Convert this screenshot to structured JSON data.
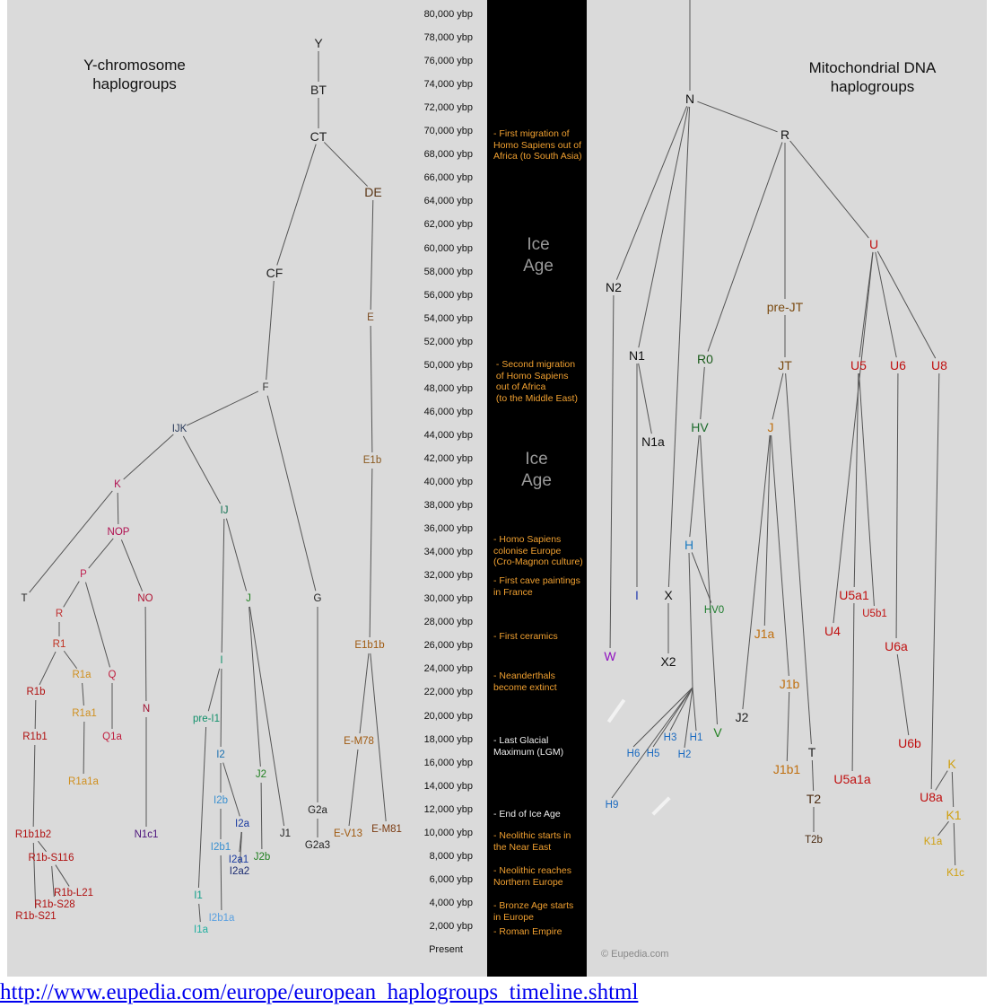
{
  "y_title": "Y-chromosome\nhaplogroups",
  "mt_title": "Mitochondrial DNA\nhaplogroups",
  "ticks": [
    "80,000 ybp",
    "78,000 ybp",
    "76,000 ybp",
    "74,000 ybp",
    "72,000 ybp",
    "70,000 ybp",
    "68,000 ybp",
    "66,000 ybp",
    "64,000 ybp",
    "62,000 ybp",
    "60,000 ybp",
    "58,000 ybp",
    "56,000 ybp",
    "54,000 ybp",
    "52,000 ybp",
    "50,000 ybp",
    "48,000 ybp",
    "46,000 ybp",
    "44,000 ybp",
    "42,000 ybp",
    "40,000 ybp",
    "38,000 ybp",
    "36,000 ybp",
    "34,000 ybp",
    "32,000 ybp",
    "30,000 ybp",
    "28,000 ybp",
    "26,000 ybp",
    "24,000 ybp",
    "22,000 ybp",
    "20,000 ybp",
    "18,000 ybp",
    "16,000 ybp",
    "14,000 ybp",
    "12,000 ybp",
    "10,000 ybp",
    "8,000 ybp",
    "6,000 ybp",
    "4,000 ybp",
    "2,000 ybp",
    "Present"
  ],
  "ice_age": "Ice\nAge",
  "events": [
    {
      "text": "- First migration of\nHomo Sapiens out of\nAfrica (to South Asia)",
      "color": "orange"
    },
    {
      "text": " - Second migration\n of Homo Sapiens\n out of Africa\n (to the Middle East)",
      "color": "orange"
    },
    {
      "text": "- Homo Sapiens\ncolonise Europe\n(Cro-Magnon culture)",
      "color": "orange"
    },
    {
      "text": "- First cave paintings\nin France",
      "color": "orange"
    },
    {
      "text": "- First ceramics",
      "color": "orange"
    },
    {
      "text": "- Neanderthals\nbecome extinct",
      "color": "orange"
    },
    {
      "text": "- Last Glacial\nMaximum (LGM)",
      "color": "white"
    },
    {
      "text": "- End of Ice Age",
      "color": "white"
    },
    {
      "text": "- Neolithic starts in\nthe Near East",
      "color": "orange"
    },
    {
      "text": "- Neolithic reaches\nNorthern Europe",
      "color": "orange"
    },
    {
      "text": "- Bronze Age starts\nin Europe",
      "color": "orange"
    },
    {
      "text": "- Roman Empire",
      "color": "orange"
    }
  ],
  "y_nodes": [
    {
      "id": "Y",
      "label": "Y",
      "color": "#222",
      "big": true
    },
    {
      "id": "BT",
      "label": "BT",
      "color": "#222",
      "big": true
    },
    {
      "id": "CT",
      "label": "CT",
      "color": "#222",
      "big": true
    },
    {
      "id": "DE",
      "label": "DE",
      "color": "#5a3515",
      "big": true
    },
    {
      "id": "CF",
      "label": "CF",
      "color": "#222",
      "big": true
    },
    {
      "id": "E",
      "label": "E",
      "color": "#7a4a20"
    },
    {
      "id": "F",
      "label": "F",
      "color": "#333"
    },
    {
      "id": "IJK",
      "label": "IJK",
      "color": "#2a3a5a"
    },
    {
      "id": "E1b",
      "label": "E1b",
      "color": "#8a5a20"
    },
    {
      "id": "K",
      "label": "K",
      "color": "#b01050"
    },
    {
      "id": "IJ",
      "label": "IJ",
      "color": "#107050"
    },
    {
      "id": "NOP",
      "label": "NOP",
      "color": "#b01050"
    },
    {
      "id": "P",
      "label": "P",
      "color": "#c02050"
    },
    {
      "id": "T",
      "label": "T",
      "color": "#222"
    },
    {
      "id": "NO",
      "label": "NO",
      "color": "#b01030"
    },
    {
      "id": "G",
      "label": "G",
      "color": "#222"
    },
    {
      "id": "J",
      "label": "J",
      "color": "#208020"
    },
    {
      "id": "R",
      "label": "R",
      "color": "#c03030"
    },
    {
      "id": "R1",
      "label": "R1",
      "color": "#c03020"
    },
    {
      "id": "E1b1b",
      "label": "E1b1b",
      "color": "#a05a10"
    },
    {
      "id": "I",
      "label": "I",
      "color": "#10906a"
    },
    {
      "id": "R1a",
      "label": "R1a",
      "color": "#d09020"
    },
    {
      "id": "Q",
      "label": "Q",
      "color": "#c02040"
    },
    {
      "id": "R1b",
      "label": "R1b",
      "color": "#b01010"
    },
    {
      "id": "R1a1",
      "label": "R1a1",
      "color": "#d09020"
    },
    {
      "id": "N",
      "label": "N",
      "color": "#a01030"
    },
    {
      "id": "pre-I1",
      "label": "pre-I1",
      "color": "#10906a"
    },
    {
      "id": "R1b1",
      "label": "R1b1",
      "color": "#b01010"
    },
    {
      "id": "Q1a",
      "label": "Q1a",
      "color": "#c02040"
    },
    {
      "id": "E-M78",
      "label": "E-M78",
      "color": "#a05a10"
    },
    {
      "id": "I2",
      "label": "I2",
      "color": "#1a70b0"
    },
    {
      "id": "J2",
      "label": "J2",
      "color": "#208020"
    },
    {
      "id": "R1a1a",
      "label": "R1a1a",
      "color": "#d09020"
    },
    {
      "id": "I2b",
      "label": "I2b",
      "color": "#3a90d0"
    },
    {
      "id": "G2a",
      "label": "G2a",
      "color": "#222"
    },
    {
      "id": "I2a",
      "label": "I2a",
      "color": "#1a3aa0"
    },
    {
      "id": "R1b1b2",
      "label": "R1b1b2",
      "color": "#b01010"
    },
    {
      "id": "N1c1",
      "label": "N1c1",
      "color": "#4a107a"
    },
    {
      "id": "E-V13",
      "label": "E-V13",
      "color": "#a05a10"
    },
    {
      "id": "E-M81",
      "label": "E-M81",
      "color": "#7a3a10"
    },
    {
      "id": "J1",
      "label": "J1",
      "color": "#222"
    },
    {
      "id": "G2a3",
      "label": "G2a3",
      "color": "#222"
    },
    {
      "id": "I2b1",
      "label": "I2b1",
      "color": "#3a90d0"
    },
    {
      "id": "I2a1",
      "label": "I2a1",
      "color": "#1a3aa0"
    },
    {
      "id": "J2b",
      "label": "J2b",
      "color": "#208020"
    },
    {
      "id": "I2a2",
      "label": "I2a2",
      "color": "#1a2a70"
    },
    {
      "id": "R1b-S116",
      "label": "R1b-S116",
      "color": "#b01010"
    },
    {
      "id": "I1",
      "label": "I1",
      "color": "#10a08a"
    },
    {
      "id": "R1b-L21",
      "label": "R1b-L21",
      "color": "#b01010"
    },
    {
      "id": "R1b-S28",
      "label": "R1b-S28",
      "color": "#b01010"
    },
    {
      "id": "I2b1a",
      "label": "I2b1a",
      "color": "#5aa0e0"
    },
    {
      "id": "R1b-S21",
      "label": "R1b-S21",
      "color": "#b01010"
    },
    {
      "id": "I1a",
      "label": "I1a",
      "color": "#20b0a0"
    }
  ],
  "mt_nodes": [
    {
      "id": "N",
      "label": "N",
      "color": "#111",
      "big": true
    },
    {
      "id": "R",
      "label": "R",
      "color": "#111",
      "big": true
    },
    {
      "id": "U",
      "label": "U",
      "color": "#c01010",
      "big": true
    },
    {
      "id": "N2",
      "label": "N2",
      "color": "#111",
      "big": true
    },
    {
      "id": "pre-JT",
      "label": "pre-JT",
      "color": "#7a4a10",
      "big": true
    },
    {
      "id": "N1",
      "label": "N1",
      "color": "#111",
      "big": true
    },
    {
      "id": "R0",
      "label": "R0",
      "color": "#1a5a1a",
      "big": true
    },
    {
      "id": "JT",
      "label": "JT",
      "color": "#7a4a10",
      "big": true
    },
    {
      "id": "U5",
      "label": "U5",
      "color": "#c01010",
      "big": true
    },
    {
      "id": "U6",
      "label": "U6",
      "color": "#c01010",
      "big": true
    },
    {
      "id": "U8",
      "label": "U8",
      "color": "#c01010",
      "big": true
    },
    {
      "id": "HV",
      "label": "HV",
      "color": "#1a6a2a",
      "big": true
    },
    {
      "id": "J",
      "label": "J",
      "color": "#c07010",
      "big": true
    },
    {
      "id": "N1a",
      "label": "N1a",
      "color": "#111",
      "big": true
    },
    {
      "id": "H",
      "label": "H",
      "color": "#1a7ac0",
      "big": true
    },
    {
      "id": "I",
      "label": "I",
      "color": "#2a40b0",
      "big": true
    },
    {
      "id": "X",
      "label": "X",
      "color": "#111",
      "big": true
    },
    {
      "id": "U5a1",
      "label": "U5a1",
      "color": "#c01010",
      "big": true
    },
    {
      "id": "HV0",
      "label": "HV0",
      "color": "#1a7a2a"
    },
    {
      "id": "U5b1",
      "label": "U5b1",
      "color": "#c01010"
    },
    {
      "id": "J1a",
      "label": "J1a",
      "color": "#c07010",
      "big": true
    },
    {
      "id": "U4",
      "label": "U4",
      "color": "#c01010",
      "big": true
    },
    {
      "id": "U6a",
      "label": "U6a",
      "color": "#c01010",
      "big": true
    },
    {
      "id": "W",
      "label": "W",
      "color": "#9010c0",
      "big": true
    },
    {
      "id": "X2",
      "label": "X2",
      "color": "#111",
      "big": true
    },
    {
      "id": "J1b",
      "label": "J1b",
      "color": "#c07010",
      "big": true
    },
    {
      "id": "J2",
      "label": "J2",
      "color": "#222",
      "big": true
    },
    {
      "id": "V",
      "label": "V",
      "color": "#208020",
      "big": true
    },
    {
      "id": "H3",
      "label": "H3",
      "color": "#1a6ac0"
    },
    {
      "id": "H1",
      "label": "H1",
      "color": "#1a6ac0"
    },
    {
      "id": "U6b",
      "label": "U6b",
      "color": "#c01010",
      "big": true
    },
    {
      "id": "H6",
      "label": "H6",
      "color": "#1a6ac0"
    },
    {
      "id": "H5",
      "label": "H5",
      "color": "#1a6ac0"
    },
    {
      "id": "H2",
      "label": "H2",
      "color": "#1a6ac0"
    },
    {
      "id": "T",
      "label": "T",
      "color": "#222",
      "big": true
    },
    {
      "id": "K",
      "label": "K",
      "color": "#d0a010",
      "big": true
    },
    {
      "id": "J1b1",
      "label": "J1b1",
      "color": "#c07010",
      "big": true
    },
    {
      "id": "U5a1a",
      "label": "U5a1a",
      "color": "#c01010",
      "big": true
    },
    {
      "id": "T2",
      "label": "T2",
      "color": "#4a2a10",
      "big": true
    },
    {
      "id": "U8a",
      "label": "U8a",
      "color": "#c01010",
      "big": true
    },
    {
      "id": "H9",
      "label": "H9",
      "color": "#1a6ac0"
    },
    {
      "id": "K1",
      "label": "K1",
      "color": "#d0a010",
      "big": true
    },
    {
      "id": "T2b",
      "label": "T2b",
      "color": "#4a2a10"
    },
    {
      "id": "K1a",
      "label": "K1a",
      "color": "#d0a010"
    },
    {
      "id": "K1c",
      "label": "K1c",
      "color": "#d0a010"
    }
  ],
  "copyright": "© Eupedia.com",
  "source_link": "http://www.eupedia.com/europe/european_haplogroups_timeline.shtml"
}
